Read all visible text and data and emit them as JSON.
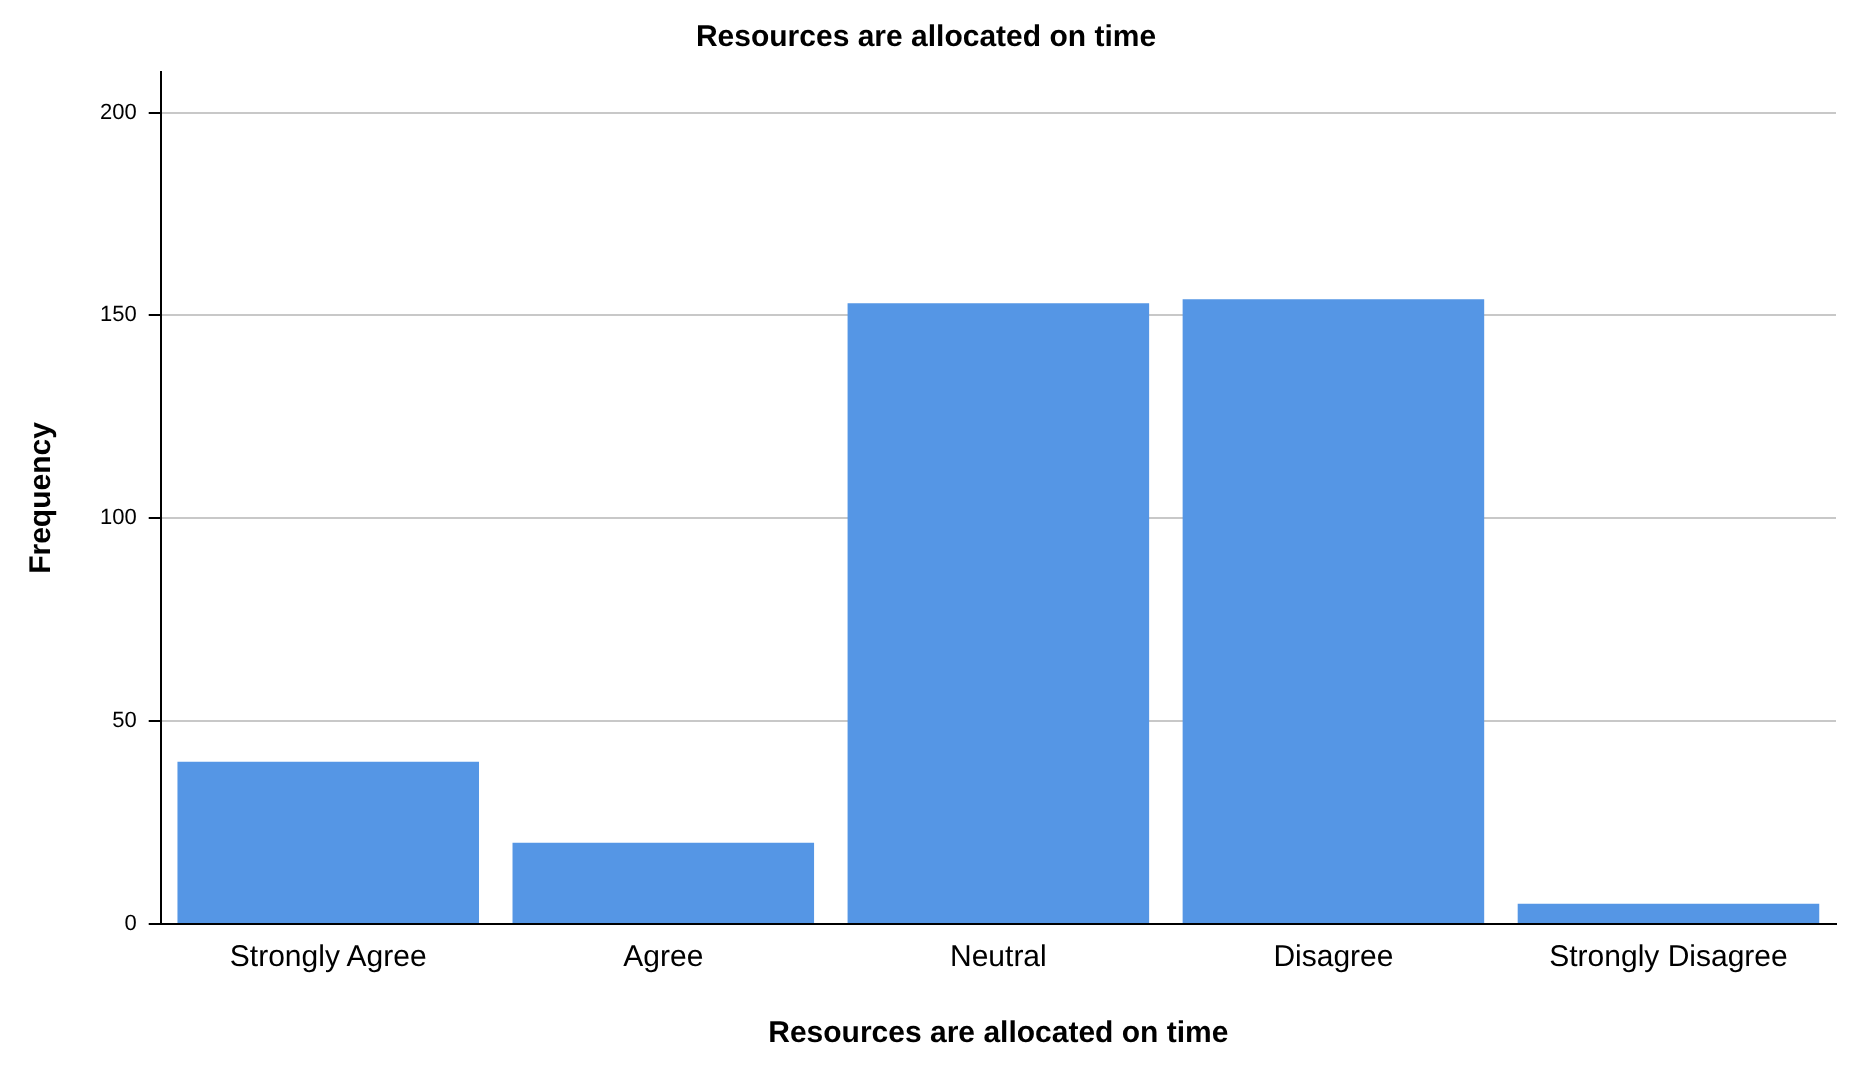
{
  "chart_data": {
    "type": "bar",
    "title": "Resources are allocated on time",
    "xlabel": "Resources are allocated on time",
    "ylabel": "Frequency",
    "categories": [
      "Strongly Agree",
      "Agree",
      "Neutral",
      "Disagree",
      "Strongly Disagree"
    ],
    "values": [
      40,
      20,
      153,
      154,
      5
    ],
    "color": "#5596e5",
    "ylim": [
      0,
      210
    ],
    "yticks": [
      0,
      50,
      100,
      150,
      200
    ],
    "grid": "y",
    "legend": false
  }
}
